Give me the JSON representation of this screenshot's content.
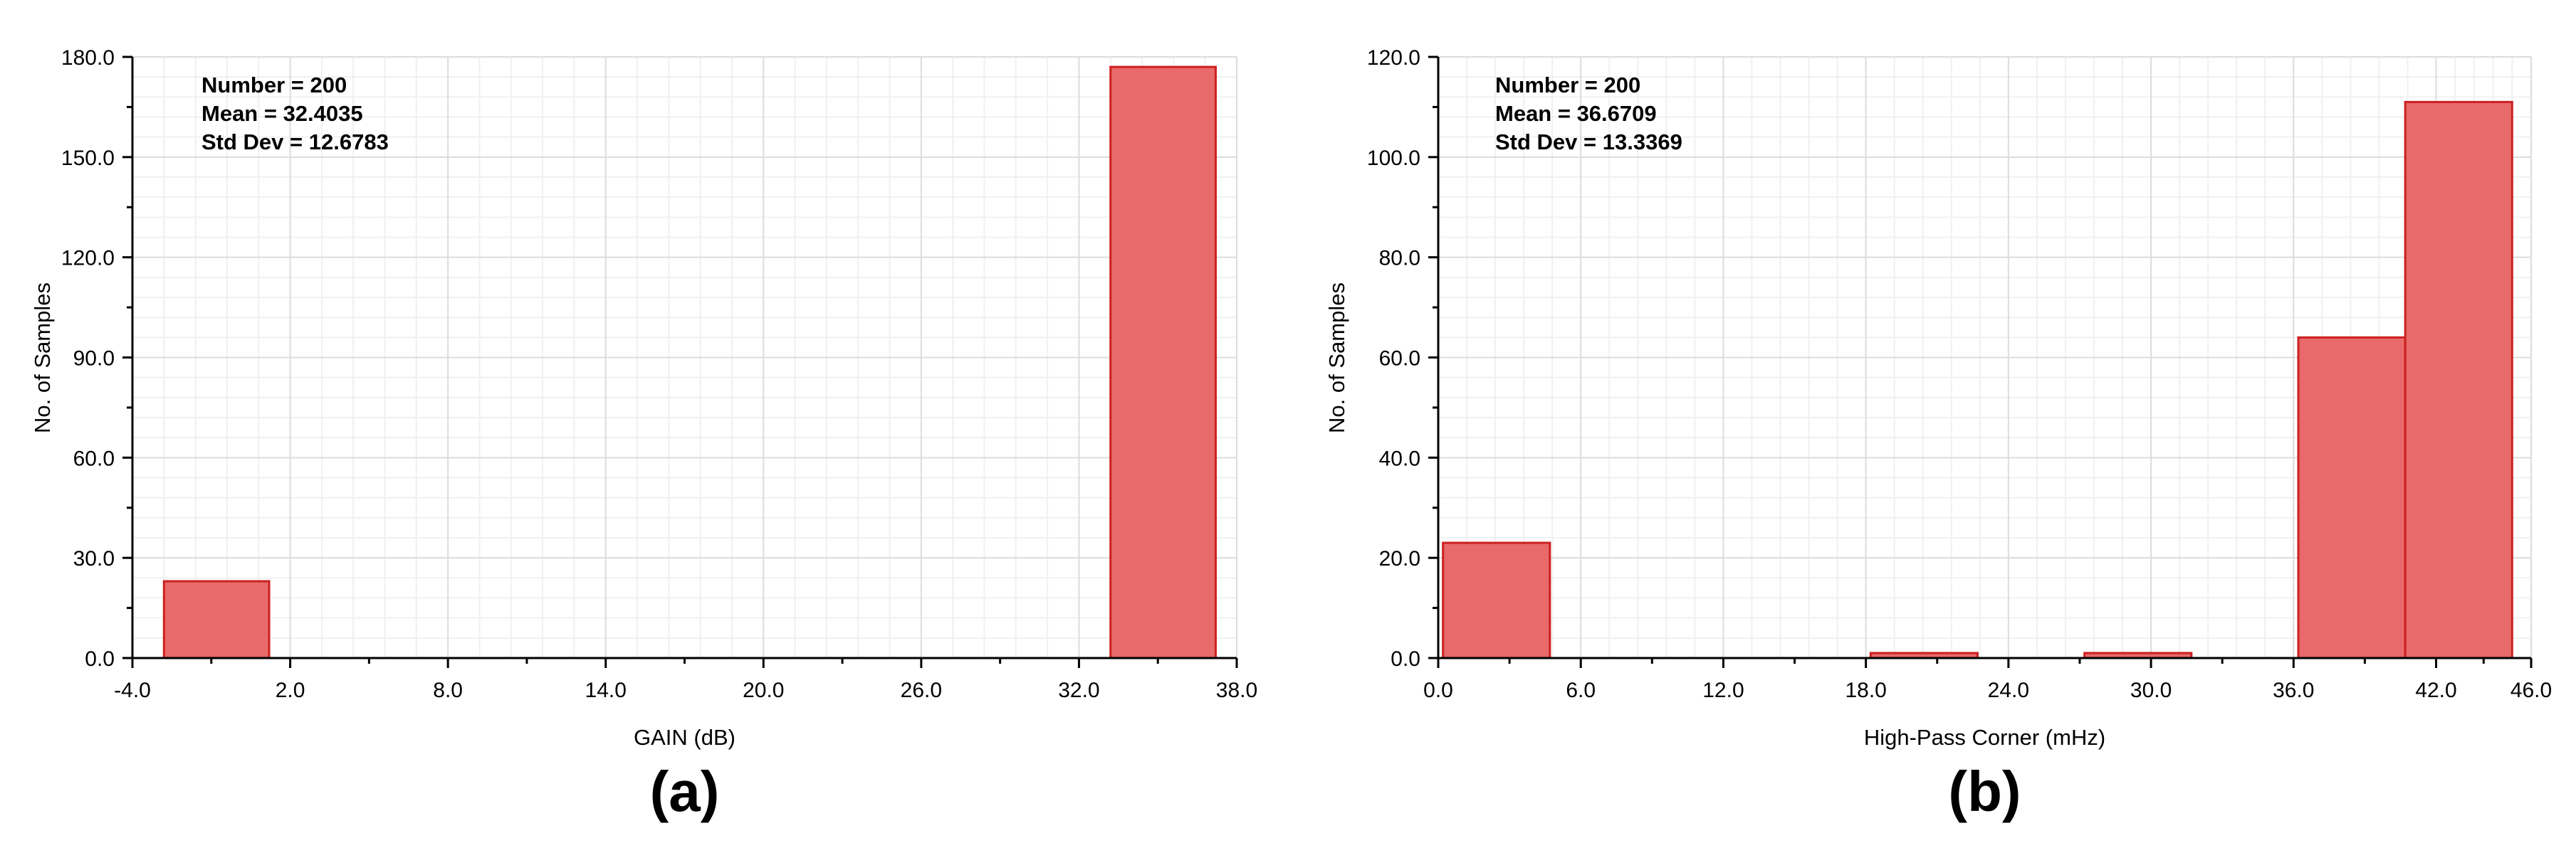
{
  "chart_data": [
    {
      "type": "bar",
      "panel_label": "(a)",
      "xlabel": "GAIN (dB)",
      "ylabel": "No. of Samples",
      "xlim": [
        -4.0,
        38.0
      ],
      "ylim": [
        0,
        180.0
      ],
      "xticks": [
        "-4.0",
        "2.0",
        "8.0",
        "14.0",
        "20.0",
        "26.0",
        "32.0",
        "38.0"
      ],
      "yticks": [
        "0.0",
        "30.0",
        "60.0",
        "90.0",
        "120.0",
        "150.0",
        "180.0"
      ],
      "grid": true,
      "stats": [
        "Number = 200",
        "Mean = 32.4035",
        "Std Dev = 12.6783"
      ],
      "bins": [
        {
          "x0": -2.8,
          "x1": 1.2,
          "count": 23
        },
        {
          "x0": 33.2,
          "x1": 37.2,
          "count": 177
        }
      ],
      "colors": {
        "fill": "#e86a6a",
        "stroke": "#cc2020"
      }
    },
    {
      "type": "bar",
      "panel_label": "(b)",
      "xlabel": "High-Pass Corner (mHz)",
      "ylabel": "No. of Samples",
      "xlim": [
        0.0,
        46.0
      ],
      "ylim": [
        0,
        120.0
      ],
      "xticks": [
        "0.0",
        "6.0",
        "12.0",
        "18.0",
        "24.0",
        "30.0",
        "36.0",
        "42.0",
        "46.0"
      ],
      "yticks": [
        "0.0",
        "20.0",
        "40.0",
        "60.0",
        "80.0",
        "100.0",
        "120.0"
      ],
      "grid": true,
      "stats": [
        "Number = 200",
        "Mean = 36.6709",
        "Std Dev = 13.3369"
      ],
      "bins": [
        {
          "x0": 0.2,
          "x1": 4.7,
          "count": 23
        },
        {
          "x0": 18.2,
          "x1": 22.7,
          "count": 1
        },
        {
          "x0": 27.2,
          "x1": 31.7,
          "count": 1
        },
        {
          "x0": 36.2,
          "x1": 40.7,
          "count": 64
        },
        {
          "x0": 40.7,
          "x1": 45.2,
          "count": 111
        }
      ],
      "colors": {
        "fill": "#e86a6a",
        "stroke": "#cc2020"
      }
    }
  ]
}
